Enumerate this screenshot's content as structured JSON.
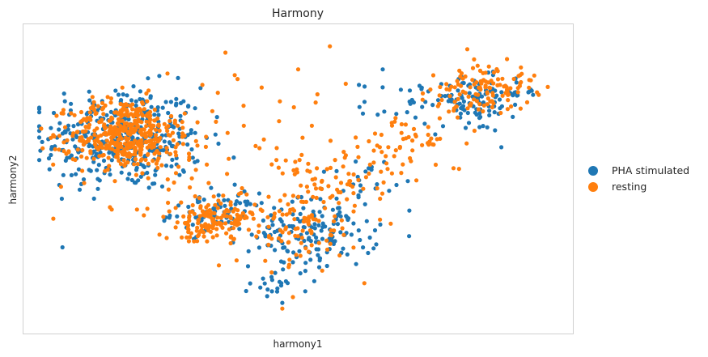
{
  "chart_data": {
    "type": "scatter",
    "title": "Harmony",
    "xlabel": "harmony1",
    "ylabel": "harmony2",
    "xlim": [
      0,
      100
    ],
    "ylim": [
      0,
      100
    ],
    "grid": false,
    "ticks": false,
    "legend_position": "right",
    "series": [
      {
        "name": "PHA stimulated",
        "color": "#1f77b4",
        "clusters": [
          {
            "cx": 17,
            "cy": 64,
            "sx": 7.5,
            "sy": 9,
            "n": 380
          },
          {
            "cx": 34,
            "cy": 38,
            "sx": 4,
            "sy": 3.5,
            "n": 70
          },
          {
            "cx": 53,
            "cy": 31,
            "sx": 6,
            "sy": 6,
            "n": 150
          },
          {
            "cx": 47,
            "cy": 14,
            "sx": 3,
            "sy": 3,
            "n": 22
          },
          {
            "cx": 62,
            "cy": 50,
            "sx": 3,
            "sy": 4,
            "n": 25
          },
          {
            "cx": 72,
            "cy": 76,
            "sx": 5,
            "sy": 4,
            "n": 35
          },
          {
            "cx": 83,
            "cy": 76,
            "sx": 4,
            "sy": 5,
            "n": 70
          },
          {
            "cx": 90,
            "cy": 80,
            "sx": 3,
            "sy": 3,
            "n": 25
          }
        ],
        "points": [
          [
            94,
            81
          ],
          [
            91,
            80
          ],
          [
            47,
            7
          ],
          [
            66,
            88
          ],
          [
            38,
            48
          ]
        ]
      },
      {
        "name": "resting",
        "color": "#ff7f0e",
        "clusters": [
          {
            "cx": 17,
            "cy": 66,
            "sx": 5,
            "sy": 6,
            "n": 380
          },
          {
            "cx": 22,
            "cy": 60,
            "sx": 9,
            "sy": 10,
            "n": 90
          },
          {
            "cx": 35,
            "cy": 37,
            "sx": 3.5,
            "sy": 3,
            "n": 90
          },
          {
            "cx": 31,
            "cy": 33,
            "sx": 3,
            "sy": 3,
            "n": 40
          },
          {
            "cx": 48,
            "cy": 34,
            "sx": 7,
            "sy": 7,
            "n": 120
          },
          {
            "cx": 58,
            "cy": 50,
            "sx": 5,
            "sy": 6,
            "n": 55
          },
          {
            "cx": 72,
            "cy": 62,
            "sx": 5,
            "sy": 5,
            "n": 45
          },
          {
            "cx": 81,
            "cy": 79,
            "sx": 4,
            "sy": 5,
            "n": 45
          },
          {
            "cx": 87,
            "cy": 82,
            "sx": 4,
            "sy": 4,
            "n": 80
          },
          {
            "cx": 50,
            "cy": 64,
            "sx": 12,
            "sy": 12,
            "n": 40
          }
        ],
        "points": [
          [
            56,
            96
          ],
          [
            82,
            95
          ],
          [
            49,
            9
          ],
          [
            50,
            88
          ],
          [
            92,
            86
          ],
          [
            38,
            86
          ],
          [
            59,
            83
          ],
          [
            79,
            82
          ],
          [
            47,
            5
          ],
          [
            35,
            20
          ]
        ]
      }
    ]
  }
}
